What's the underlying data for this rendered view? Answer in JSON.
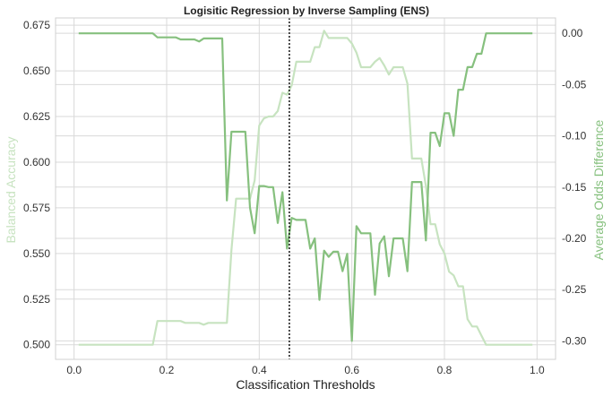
{
  "chart_data": {
    "type": "line",
    "title": "Logisitic Regression by Inverse Sampling (ENS)",
    "xlabel": "Classification Thresholds",
    "ylabel_left": "Balanced Accuracy",
    "ylabel_right": "Average Odds Difference",
    "xlim": [
      -0.04,
      1.04
    ],
    "ylim_left": [
      0.492,
      0.679
    ],
    "ylim_right": [
      -0.318,
      0.015
    ],
    "xticks": [
      "0.0",
      "0.2",
      "0.4",
      "0.6",
      "0.8",
      "1.0"
    ],
    "yticks_left": [
      "0.500",
      "0.525",
      "0.550",
      "0.575",
      "0.600",
      "0.625",
      "0.650",
      "0.675"
    ],
    "yticks_right": [
      "0.00",
      "-0.05",
      "-0.10",
      "-0.15",
      "-0.20",
      "-0.25",
      "-0.30"
    ],
    "grid": true,
    "threshold_line": 0.465,
    "colors": {
      "balanced_accuracy": "#c7e3c0",
      "average_odds_difference": "#86c07e",
      "threshold_line": "#222222",
      "grid": "#d9d9d9"
    },
    "series": [
      {
        "axis": "left",
        "values": [
          [
            0.01,
            0.5
          ],
          [
            0.02,
            0.5
          ],
          [
            0.03,
            0.5
          ],
          [
            0.04,
            0.5
          ],
          [
            0.05,
            0.5
          ],
          [
            0.06,
            0.5
          ],
          [
            0.07,
            0.5
          ],
          [
            0.08,
            0.5
          ],
          [
            0.09,
            0.5
          ],
          [
            0.1,
            0.5
          ],
          [
            0.11,
            0.5
          ],
          [
            0.12,
            0.5
          ],
          [
            0.13,
            0.5
          ],
          [
            0.14,
            0.5
          ],
          [
            0.15,
            0.5
          ],
          [
            0.16,
            0.5
          ],
          [
            0.17,
            0.5
          ],
          [
            0.18,
            0.513
          ],
          [
            0.19,
            0.513
          ],
          [
            0.2,
            0.513
          ],
          [
            0.21,
            0.513
          ],
          [
            0.22,
            0.513
          ],
          [
            0.23,
            0.513
          ],
          [
            0.24,
            0.512
          ],
          [
            0.25,
            0.512
          ],
          [
            0.26,
            0.512
          ],
          [
            0.27,
            0.512
          ],
          [
            0.28,
            0.511
          ],
          [
            0.29,
            0.512
          ],
          [
            0.3,
            0.512
          ],
          [
            0.31,
            0.512
          ],
          [
            0.32,
            0.512
          ],
          [
            0.33,
            0.512
          ],
          [
            0.34,
            0.552
          ],
          [
            0.35,
            0.58
          ],
          [
            0.36,
            0.58
          ],
          [
            0.37,
            0.58
          ],
          [
            0.38,
            0.58
          ],
          [
            0.39,
            0.59
          ],
          [
            0.4,
            0.62
          ],
          [
            0.41,
            0.624
          ],
          [
            0.42,
            0.625
          ],
          [
            0.43,
            0.625
          ],
          [
            0.44,
            0.628
          ],
          [
            0.45,
            0.638
          ],
          [
            0.46,
            0.637
          ],
          [
            0.47,
            0.642
          ],
          [
            0.48,
            0.655
          ],
          [
            0.49,
            0.655
          ],
          [
            0.5,
            0.655
          ],
          [
            0.51,
            0.655
          ],
          [
            0.52,
            0.663
          ],
          [
            0.53,
            0.663
          ],
          [
            0.54,
            0.672
          ],
          [
            0.55,
            0.668
          ],
          [
            0.56,
            0.668
          ],
          [
            0.57,
            0.668
          ],
          [
            0.58,
            0.668
          ],
          [
            0.59,
            0.668
          ],
          [
            0.6,
            0.665
          ],
          [
            0.61,
            0.66
          ],
          [
            0.62,
            0.652
          ],
          [
            0.63,
            0.652
          ],
          [
            0.64,
            0.652
          ],
          [
            0.65,
            0.655
          ],
          [
            0.66,
            0.657
          ],
          [
            0.67,
            0.653
          ],
          [
            0.68,
            0.648
          ],
          [
            0.69,
            0.652
          ],
          [
            0.7,
            0.652
          ],
          [
            0.71,
            0.652
          ],
          [
            0.72,
            0.643
          ],
          [
            0.73,
            0.602
          ],
          [
            0.74,
            0.602
          ],
          [
            0.75,
            0.602
          ],
          [
            0.76,
            0.587
          ],
          [
            0.77,
            0.566
          ],
          [
            0.78,
            0.566
          ],
          [
            0.79,
            0.555
          ],
          [
            0.8,
            0.55
          ],
          [
            0.81,
            0.54
          ],
          [
            0.82,
            0.538
          ],
          [
            0.83,
            0.532
          ],
          [
            0.84,
            0.532
          ],
          [
            0.85,
            0.514
          ],
          [
            0.86,
            0.51
          ],
          [
            0.87,
            0.51
          ],
          [
            0.88,
            0.505
          ],
          [
            0.89,
            0.5
          ],
          [
            0.9,
            0.5
          ],
          [
            0.91,
            0.5
          ],
          [
            0.92,
            0.5
          ],
          [
            0.93,
            0.5
          ],
          [
            0.94,
            0.5
          ],
          [
            0.95,
            0.5
          ],
          [
            0.96,
            0.5
          ],
          [
            0.97,
            0.5
          ],
          [
            0.98,
            0.5
          ],
          [
            0.99,
            0.5
          ]
        ]
      },
      {
        "axis": "right",
        "values": [
          [
            0.01,
            0.0
          ],
          [
            0.02,
            0.0
          ],
          [
            0.03,
            0.0
          ],
          [
            0.04,
            0.0
          ],
          [
            0.05,
            0.0
          ],
          [
            0.06,
            0.0
          ],
          [
            0.07,
            0.0
          ],
          [
            0.08,
            0.0
          ],
          [
            0.09,
            0.0
          ],
          [
            0.1,
            0.0
          ],
          [
            0.11,
            0.0
          ],
          [
            0.12,
            0.0
          ],
          [
            0.13,
            0.0
          ],
          [
            0.14,
            0.0
          ],
          [
            0.15,
            0.0
          ],
          [
            0.16,
            0.0
          ],
          [
            0.17,
            0.0
          ],
          [
            0.18,
            -0.004
          ],
          [
            0.19,
            -0.004
          ],
          [
            0.2,
            -0.004
          ],
          [
            0.21,
            -0.004
          ],
          [
            0.22,
            -0.004
          ],
          [
            0.23,
            -0.006
          ],
          [
            0.24,
            -0.006
          ],
          [
            0.25,
            -0.006
          ],
          [
            0.26,
            -0.006
          ],
          [
            0.27,
            -0.008
          ],
          [
            0.28,
            -0.005
          ],
          [
            0.29,
            -0.005
          ],
          [
            0.3,
            -0.005
          ],
          [
            0.31,
            -0.005
          ],
          [
            0.32,
            -0.005
          ],
          [
            0.33,
            -0.163
          ],
          [
            0.34,
            -0.096
          ],
          [
            0.35,
            -0.096
          ],
          [
            0.36,
            -0.096
          ],
          [
            0.37,
            -0.096
          ],
          [
            0.38,
            -0.17
          ],
          [
            0.39,
            -0.195
          ],
          [
            0.4,
            -0.149
          ],
          [
            0.41,
            -0.149
          ],
          [
            0.42,
            -0.15
          ],
          [
            0.43,
            -0.15
          ],
          [
            0.44,
            -0.185
          ],
          [
            0.45,
            -0.155
          ],
          [
            0.46,
            -0.21
          ],
          [
            0.47,
            -0.18
          ],
          [
            0.48,
            -0.182
          ],
          [
            0.49,
            -0.182
          ],
          [
            0.5,
            -0.182
          ],
          [
            0.51,
            -0.21
          ],
          [
            0.52,
            -0.2
          ],
          [
            0.53,
            -0.26
          ],
          [
            0.54,
            -0.212
          ],
          [
            0.55,
            -0.218
          ],
          [
            0.56,
            -0.213
          ],
          [
            0.57,
            -0.213
          ],
          [
            0.58,
            -0.232
          ],
          [
            0.59,
            -0.215
          ],
          [
            0.6,
            -0.3
          ],
          [
            0.61,
            -0.188
          ],
          [
            0.62,
            -0.195
          ],
          [
            0.63,
            -0.195
          ],
          [
            0.64,
            -0.195
          ],
          [
            0.65,
            -0.255
          ],
          [
            0.66,
            -0.205
          ],
          [
            0.67,
            -0.198
          ],
          [
            0.68,
            -0.237
          ],
          [
            0.69,
            -0.2
          ],
          [
            0.7,
            -0.2
          ],
          [
            0.71,
            -0.2
          ],
          [
            0.72,
            -0.232
          ],
          [
            0.73,
            -0.145
          ],
          [
            0.74,
            -0.145
          ],
          [
            0.75,
            -0.145
          ],
          [
            0.76,
            -0.202
          ],
          [
            0.77,
            -0.097
          ],
          [
            0.78,
            -0.097
          ],
          [
            0.79,
            -0.11
          ],
          [
            0.8,
            -0.078
          ],
          [
            0.81,
            -0.078
          ],
          [
            0.82,
            -0.1
          ],
          [
            0.83,
            -0.055
          ],
          [
            0.84,
            -0.055
          ],
          [
            0.85,
            -0.033
          ],
          [
            0.86,
            -0.033
          ],
          [
            0.87,
            -0.02
          ],
          [
            0.88,
            -0.02
          ],
          [
            0.89,
            0.0
          ],
          [
            0.9,
            0.0
          ],
          [
            0.91,
            0.0
          ],
          [
            0.92,
            0.0
          ],
          [
            0.93,
            0.0
          ],
          [
            0.94,
            0.0
          ],
          [
            0.95,
            0.0
          ],
          [
            0.96,
            0.0
          ],
          [
            0.97,
            0.0
          ],
          [
            0.98,
            0.0
          ],
          [
            0.99,
            0.0
          ]
        ]
      }
    ]
  }
}
